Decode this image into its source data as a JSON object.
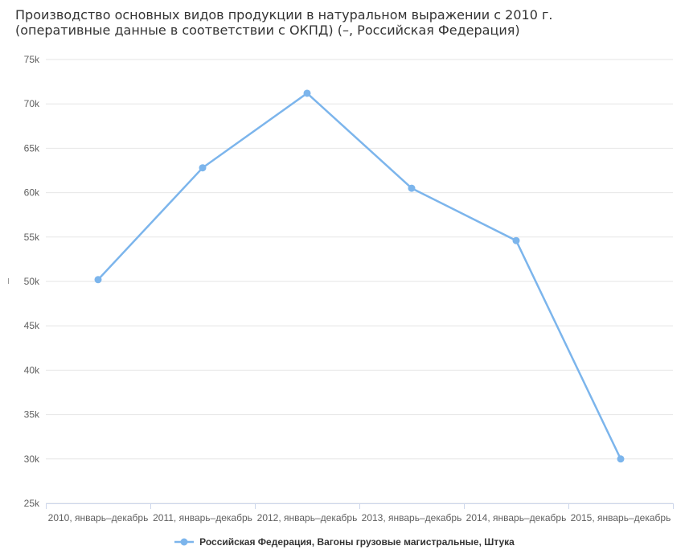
{
  "title": {
    "line1": "Производство основных видов продукции в натуральном выражении с 2010 г.",
    "line2": "(оперативные данные в соответствии с ОКПД) (–, Российская Федерация)"
  },
  "legend": {
    "label": "Российская Федерация, Вагоны грузовые магистральные, Штука",
    "marker_icon": "line-dot-marker"
  },
  "chart_data": {
    "type": "line",
    "title": "Производство основных видов продукции в натуральном выражении с 2010 г. (оперативные данные в соответствии с ОКПД) (–, Российская Федерация)",
    "categories": [
      "2010, январь–декабрь",
      "2011, январь–декабрь",
      "2012, январь–декабрь",
      "2013, январь–декабрь",
      "2014, январь–декабрь",
      "2015, январь–декабрь"
    ],
    "series": [
      {
        "name": "Российская Федерация, Вагоны грузовые магистральные, Штука",
        "color": "#7cb5ec",
        "values": [
          50200,
          62800,
          71200,
          60500,
          54600,
          30000
        ]
      }
    ],
    "xlabel": "",
    "ylabel": "",
    "ylim": [
      25000,
      75000
    ],
    "yticks": [
      {
        "v": 75000,
        "label": "75k"
      },
      {
        "v": 70000,
        "label": "70k"
      },
      {
        "v": 65000,
        "label": "65k"
      },
      {
        "v": 60000,
        "label": "60k"
      },
      {
        "v": 55000,
        "label": "55k"
      },
      {
        "v": 50000,
        "label": "50k"
      },
      {
        "v": 45000,
        "label": "45k"
      },
      {
        "v": 40000,
        "label": "40k"
      },
      {
        "v": 35000,
        "label": "35k"
      },
      {
        "v": 30000,
        "label": "30k"
      },
      {
        "v": 25000,
        "label": "25k"
      }
    ],
    "grid": true,
    "legend_position": "bottom",
    "colors": {
      "series": "#7cb5ec",
      "gridline": "#e6e6e6",
      "axis_line": "#ccd6eb",
      "tick": "#ccd6eb",
      "axis_text": "#606060",
      "title_text": "#333333",
      "legend_text": "#333333"
    }
  }
}
